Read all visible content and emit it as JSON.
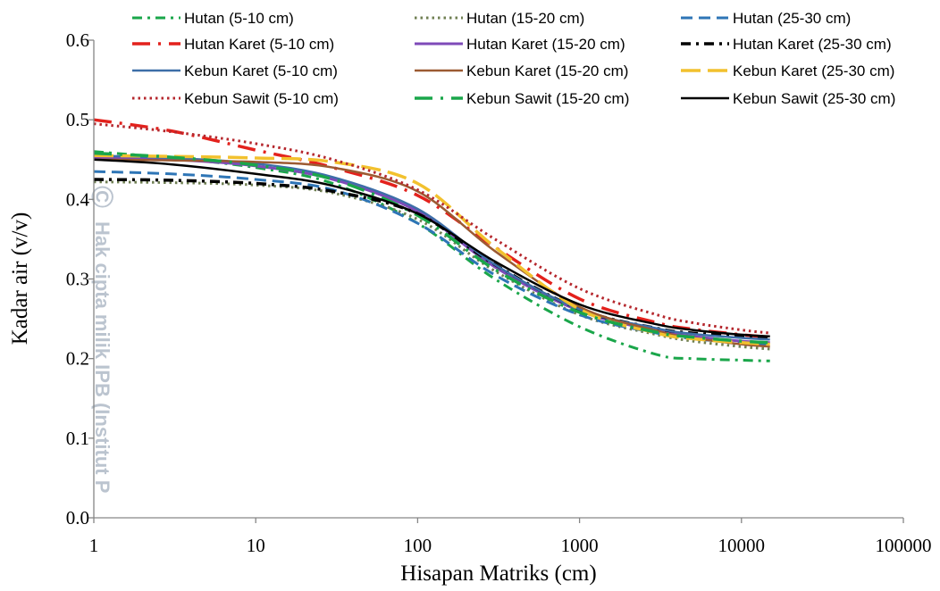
{
  "chart_data": {
    "type": "line",
    "title": "",
    "xlabel": "Hisapan Matriks (cm)",
    "ylabel": "Kadar air (v/v)",
    "xscale": "log",
    "xlim": [
      1,
      100000
    ],
    "ylim": [
      0,
      0.6
    ],
    "x_ticks": [
      "1",
      "10",
      "100",
      "1000",
      "10000",
      "100000"
    ],
    "y_ticks": [
      "0.0",
      "0.1",
      "0.2",
      "0.3",
      "0.4",
      "0.5",
      "0.6"
    ],
    "grid": false,
    "legend_position": "top",
    "x": [
      1,
      3,
      10,
      30,
      100,
      300,
      1000,
      3000,
      5000,
      10000,
      15000
    ],
    "series": [
      {
        "name": "Hutan (5-10 cm)",
        "color": "#1aa64a",
        "dash": "dashdot",
        "width": 3,
        "values": [
          0.46,
          0.452,
          0.44,
          0.42,
          0.37,
          0.3,
          0.24,
          0.205,
          0.2,
          0.198,
          0.197
        ]
      },
      {
        "name": "Hutan (15-20 cm)",
        "color": "#6f7f52",
        "dash": "dot",
        "width": 3,
        "values": [
          0.422,
          0.421,
          0.418,
          0.408,
          0.375,
          0.31,
          0.255,
          0.23,
          0.222,
          0.215,
          0.212
        ]
      },
      {
        "name": "Hutan (25-30 cm)",
        "color": "#2e75b6",
        "dash": "dash",
        "width": 3,
        "values": [
          0.435,
          0.432,
          0.425,
          0.412,
          0.37,
          0.305,
          0.255,
          0.232,
          0.225,
          0.22,
          0.218
        ]
      },
      {
        "name": "Hutan Karet (5-10 cm)",
        "color": "#e3211c",
        "dash": "longdashdot",
        "width": 3.5,
        "values": [
          0.5,
          0.486,
          0.462,
          0.44,
          0.405,
          0.34,
          0.275,
          0.245,
          0.237,
          0.23,
          0.227
        ]
      },
      {
        "name": "Hutan Karet (15-20 cm)",
        "color": "#7e4ab8",
        "dash": "solid",
        "width": 3,
        "values": [
          0.452,
          0.45,
          0.442,
          0.425,
          0.385,
          0.315,
          0.26,
          0.235,
          0.228,
          0.222,
          0.22
        ]
      },
      {
        "name": "Hutan Karet (25-30 cm)",
        "color": "#000000",
        "dash": "dashdot",
        "width": 3.5,
        "values": [
          0.425,
          0.424,
          0.42,
          0.41,
          0.382,
          0.318,
          0.262,
          0.238,
          0.232,
          0.228,
          0.226
        ]
      },
      {
        "name": "Kebun Karet (5-10 cm)",
        "color": "#3d6ea8",
        "dash": "solid",
        "width": 2.5,
        "values": [
          0.455,
          0.452,
          0.445,
          0.428,
          0.388,
          0.318,
          0.262,
          0.238,
          0.231,
          0.226,
          0.224
        ]
      },
      {
        "name": "Kebun Karet (15-20 cm)",
        "color": "#9c5a32",
        "dash": "solid",
        "width": 2.5,
        "values": [
          0.45,
          0.449,
          0.447,
          0.44,
          0.41,
          0.335,
          0.265,
          0.235,
          0.226,
          0.218,
          0.215
        ]
      },
      {
        "name": "Kebun Karet (25-30 cm)",
        "color": "#f2c12e",
        "dash": "longdash",
        "width": 3.5,
        "values": [
          0.455,
          0.454,
          0.452,
          0.447,
          0.42,
          0.34,
          0.262,
          0.232,
          0.225,
          0.22,
          0.218
        ]
      },
      {
        "name": "Kebun Sawit (5-10 cm)",
        "color": "#b5272d",
        "dash": "dot",
        "width": 3,
        "values": [
          0.495,
          0.485,
          0.47,
          0.45,
          0.412,
          0.35,
          0.288,
          0.255,
          0.245,
          0.236,
          0.232
        ]
      },
      {
        "name": "Kebun Sawit (15-20 cm)",
        "color": "#1aa64a",
        "dash": "longdashdot",
        "width": 3.5,
        "values": [
          0.458,
          0.453,
          0.443,
          0.425,
          0.38,
          0.312,
          0.258,
          0.233,
          0.227,
          0.222,
          0.22
        ]
      },
      {
        "name": "Kebun Sawit (25-30 cm)",
        "color": "#000000",
        "dash": "solid",
        "width": 2.5,
        "values": [
          0.45,
          0.444,
          0.432,
          0.417,
          0.382,
          0.322,
          0.268,
          0.243,
          0.236,
          0.23,
          0.228
        ]
      }
    ]
  },
  "watermark": {
    "copyright_symbol": "©",
    "text": "Hak cipta milik IPB (Institut P"
  }
}
